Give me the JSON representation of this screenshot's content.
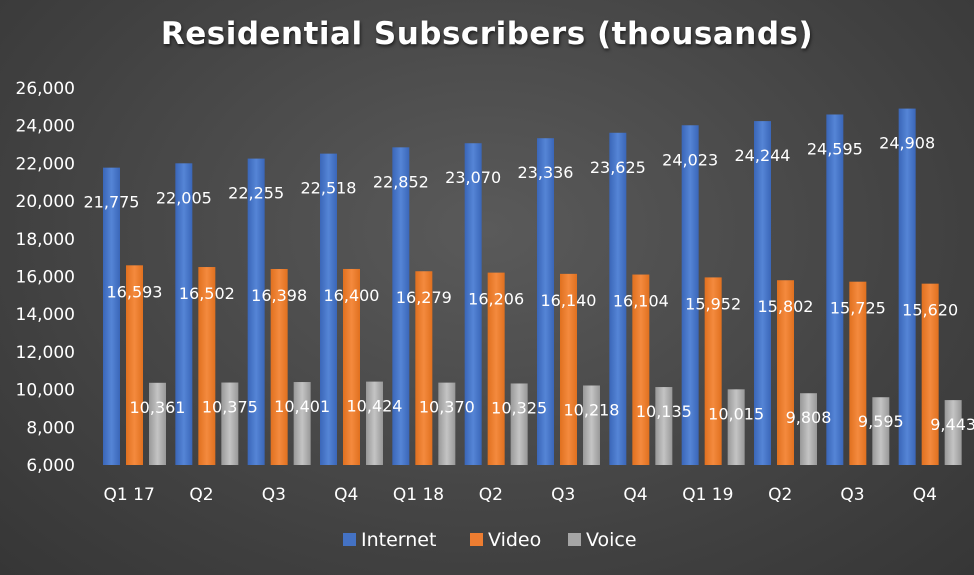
{
  "chart_data": {
    "type": "bar",
    "title": "Residential Subscribers (thousands)",
    "xlabel": "",
    "ylabel": "",
    "categories": [
      "Q1 17",
      "Q2",
      "Q3",
      "Q4",
      "Q1 18",
      "Q2",
      "Q3",
      "Q4",
      "Q1 19",
      "Q2",
      "Q3",
      "Q4"
    ],
    "series": [
      {
        "name": "Internet",
        "color": "#4472C4",
        "values": [
          21775,
          22005,
          22255,
          22518,
          22852,
          23070,
          23336,
          23625,
          24023,
          24244,
          24595,
          24908
        ],
        "labels": [
          "21,775",
          "22,005",
          "22,255",
          "22,518",
          "22,852",
          "23,070",
          "23,336",
          "23,625",
          "24,023",
          "24,244",
          "24,595",
          "24,908"
        ]
      },
      {
        "name": "Video",
        "color": "#ED7D31",
        "values": [
          16593,
          16502,
          16398,
          16400,
          16279,
          16206,
          16140,
          16104,
          15952,
          15802,
          15725,
          15620
        ],
        "labels": [
          "16,593",
          "16,502",
          "16,398",
          "16,400",
          "16,279",
          "16,206",
          "16,140",
          "16,104",
          "15,952",
          "15,802",
          "15,725",
          "15,620"
        ]
      },
      {
        "name": "Voice",
        "color": "#A5A5A5",
        "values": [
          10361,
          10375,
          10401,
          10424,
          10370,
          10325,
          10218,
          10135,
          10015,
          9808,
          9595,
          9443
        ],
        "labels": [
          "10,361",
          "10,375",
          "10,401",
          "10,424",
          "10,370",
          "10,325",
          "10,218",
          "10,135",
          "10,015",
          "9,808",
          "9,595",
          "9,443"
        ]
      }
    ],
    "ylim": [
      6000,
      26000
    ],
    "yticks": [
      6000,
      8000,
      10000,
      12000,
      14000,
      16000,
      18000,
      20000,
      22000,
      24000,
      26000
    ],
    "ytick_labels": [
      "6,000",
      "8,000",
      "10,000",
      "12,000",
      "14,000",
      "16,000",
      "18,000",
      "20,000",
      "22,000",
      "24,000",
      "26,000"
    ],
    "grid": false,
    "legend_position": "bottom"
  }
}
